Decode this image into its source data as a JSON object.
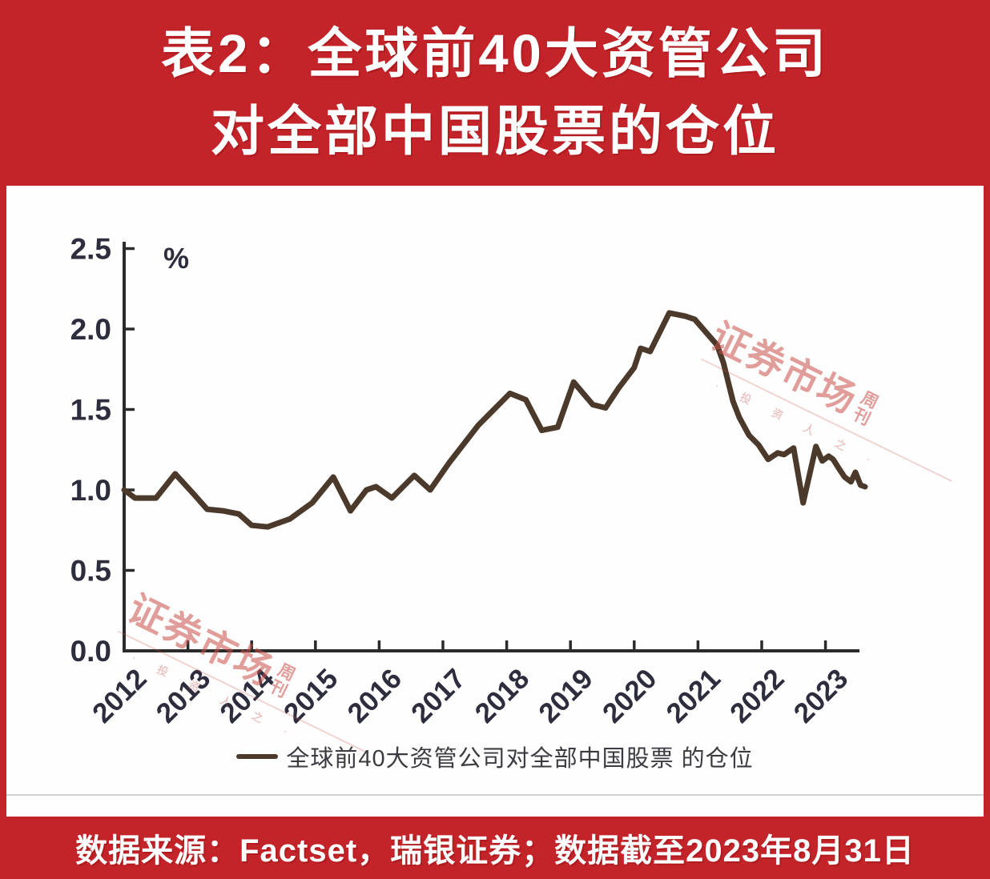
{
  "header": {
    "line1": "表2：全球前40大资管公司",
    "line2": "对全部中国股票的仓位"
  },
  "footer": {
    "text": "数据来源：Factset，瑞银证券；数据截至2023年8月31日"
  },
  "legend": {
    "label": "全球前40大资管公司对全部中国股票 的仓位"
  },
  "watermark": {
    "main": "证券市场",
    "sub_top": "周",
    "sub_bottom": "刊",
    "tagline": "· 投 资 人 之 ·"
  },
  "colors": {
    "brand_red": "#c3242a",
    "line": "#4b392b",
    "axis": "#2b2b2b",
    "tick_label": "#2d2d3e",
    "watermark": "#c94f49",
    "legend_text": "#3b3b41",
    "footer_text": "#ffffff"
  },
  "chart_data": {
    "type": "line",
    "title": "表2：全球前40大资管公司对全部中国股票的仓位",
    "xlabel": "",
    "ylabel": "%",
    "unit_label": "%",
    "grid": false,
    "legend_position": "bottom",
    "xlim": [
      2012,
      2023.65
    ],
    "ylim": [
      0,
      2.5
    ],
    "x_ticks": [
      2012,
      2013,
      2014,
      2015,
      2016,
      2017,
      2018,
      2019,
      2020,
      2021,
      2022,
      2023
    ],
    "y_ticks": [
      0.0,
      0.5,
      1.0,
      1.5,
      2.0,
      2.5
    ],
    "series": [
      {
        "name": "全球前40大资管公司对全部中国股票 的仓位",
        "points": [
          [
            2012.0,
            1.0
          ],
          [
            2012.17,
            0.95
          ],
          [
            2012.5,
            0.95
          ],
          [
            2012.8,
            1.1
          ],
          [
            2013.1,
            0.97
          ],
          [
            2013.3,
            0.88
          ],
          [
            2013.55,
            0.87
          ],
          [
            2013.8,
            0.85
          ],
          [
            2014.0,
            0.78
          ],
          [
            2014.25,
            0.77
          ],
          [
            2014.6,
            0.82
          ],
          [
            2014.95,
            0.92
          ],
          [
            2015.28,
            1.08
          ],
          [
            2015.55,
            0.87
          ],
          [
            2015.8,
            1.0
          ],
          [
            2015.95,
            1.02
          ],
          [
            2016.2,
            0.95
          ],
          [
            2016.55,
            1.09
          ],
          [
            2016.8,
            1.0
          ],
          [
            2017.1,
            1.17
          ],
          [
            2017.55,
            1.4
          ],
          [
            2017.8,
            1.5
          ],
          [
            2018.05,
            1.6
          ],
          [
            2018.3,
            1.56
          ],
          [
            2018.55,
            1.37
          ],
          [
            2018.8,
            1.39
          ],
          [
            2019.05,
            1.67
          ],
          [
            2019.35,
            1.53
          ],
          [
            2019.55,
            1.51
          ],
          [
            2019.75,
            1.63
          ],
          [
            2020.0,
            1.76
          ],
          [
            2020.1,
            1.88
          ],
          [
            2020.25,
            1.86
          ],
          [
            2020.55,
            2.1
          ],
          [
            2020.8,
            2.08
          ],
          [
            2020.95,
            2.06
          ],
          [
            2021.3,
            1.9
          ],
          [
            2021.4,
            1.79
          ],
          [
            2021.55,
            1.55
          ],
          [
            2021.65,
            1.45
          ],
          [
            2021.8,
            1.34
          ],
          [
            2021.95,
            1.28
          ],
          [
            2022.1,
            1.19
          ],
          [
            2022.25,
            1.23
          ],
          [
            2022.35,
            1.22
          ],
          [
            2022.5,
            1.26
          ],
          [
            2022.65,
            0.92
          ],
          [
            2022.85,
            1.27
          ],
          [
            2022.95,
            1.18
          ],
          [
            2023.05,
            1.21
          ],
          [
            2023.12,
            1.19
          ],
          [
            2023.2,
            1.14
          ],
          [
            2023.3,
            1.08
          ],
          [
            2023.4,
            1.05
          ],
          [
            2023.47,
            1.11
          ],
          [
            2023.55,
            1.03
          ],
          [
            2023.62,
            1.02
          ]
        ]
      }
    ]
  }
}
